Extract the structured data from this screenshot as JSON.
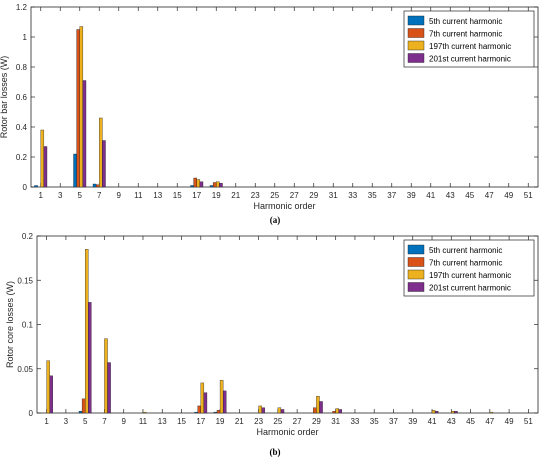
{
  "chart_data": [
    {
      "type": "bar",
      "caption": "(a)",
      "xlabel": "Harmonic order",
      "ylabel": "Rotor bar losses (W)",
      "ylim": [
        0,
        1.2
      ],
      "yticks": [
        "0",
        "0.2",
        "0.4",
        "0.6",
        "0.8",
        "1",
        "1.2"
      ],
      "xticks": [
        "1",
        "3",
        "5",
        "7",
        "9",
        "11",
        "13",
        "15",
        "17",
        "19",
        "21",
        "23",
        "25",
        "27",
        "29",
        "31",
        "33",
        "35",
        "37",
        "39",
        "41",
        "43",
        "45",
        "47",
        "49",
        "51"
      ],
      "legend_position": "top-right",
      "series": [
        {
          "name": "5th current harmonic",
          "color": "#0072BD",
          "points": [
            [
              1,
              0.01
            ],
            [
              5,
              0.22
            ],
            [
              7,
              0.02
            ],
            [
              17,
              0.01
            ],
            [
              19,
              0.01
            ]
          ]
        },
        {
          "name": "7th current harmonic",
          "color": "#D95319",
          "points": [
            [
              5,
              1.05
            ],
            [
              7,
              0.015
            ],
            [
              17,
              0.06
            ],
            [
              19,
              0.03
            ]
          ]
        },
        {
          "name": "197th current harmonic",
          "color": "#EDB120",
          "points": [
            [
              1,
              0.38
            ],
            [
              5,
              1.07
            ],
            [
              7,
              0.46
            ],
            [
              17,
              0.05
            ],
            [
              19,
              0.035
            ]
          ]
        },
        {
          "name": "201st current harmonic",
          "color": "#7E2F8E",
          "points": [
            [
              1,
              0.27
            ],
            [
              5,
              0.71
            ],
            [
              7,
              0.31
            ],
            [
              17,
              0.035
            ],
            [
              19,
              0.025
            ]
          ]
        }
      ]
    },
    {
      "type": "bar",
      "caption": "(b)",
      "xlabel": "Harmonic order",
      "ylabel": "Rotor core losses (W)",
      "ylim": [
        0,
        0.2
      ],
      "yticks": [
        "0",
        "0.05",
        "0.1",
        "0.15",
        "0.2"
      ],
      "xticks": [
        "1",
        "3",
        "5",
        "7",
        "9",
        "11",
        "13",
        "15",
        "17",
        "19",
        "21",
        "23",
        "25",
        "27",
        "29",
        "31",
        "33",
        "35",
        "37",
        "39",
        "41",
        "43",
        "45",
        "47",
        "49",
        "51"
      ],
      "legend_position": "top-right",
      "series": [
        {
          "name": "5th current harmonic",
          "color": "#0072BD",
          "points": [
            [
              5,
              0.002
            ],
            [
              17,
              0.001
            ],
            [
              19,
              0.001
            ]
          ]
        },
        {
          "name": "7th current harmonic",
          "color": "#D95319",
          "points": [
            [
              5,
              0.016
            ],
            [
              17,
              0.008
            ],
            [
              19,
              0.003
            ],
            [
              29,
              0.006
            ],
            [
              31,
              0.002
            ]
          ]
        },
        {
          "name": "197th current harmonic",
          "color": "#EDB120",
          "points": [
            [
              1,
              0.059
            ],
            [
              5,
              0.185
            ],
            [
              7,
              0.084
            ],
            [
              11,
              0.001
            ],
            [
              17,
              0.034
            ],
            [
              19,
              0.037
            ],
            [
              23,
              0.008
            ],
            [
              25,
              0.006
            ],
            [
              29,
              0.019
            ],
            [
              31,
              0.005
            ],
            [
              41,
              0.003
            ],
            [
              43,
              0.002
            ],
            [
              47,
              0.001
            ]
          ]
        },
        {
          "name": "201st current harmonic",
          "color": "#7E2F8E",
          "points": [
            [
              1,
              0.042
            ],
            [
              5,
              0.125
            ],
            [
              7,
              0.057
            ],
            [
              17,
              0.023
            ],
            [
              19,
              0.025
            ],
            [
              23,
              0.006
            ],
            [
              25,
              0.004
            ],
            [
              29,
              0.013
            ],
            [
              31,
              0.004
            ],
            [
              41,
              0.002
            ],
            [
              43,
              0.002
            ]
          ]
        }
      ]
    }
  ]
}
